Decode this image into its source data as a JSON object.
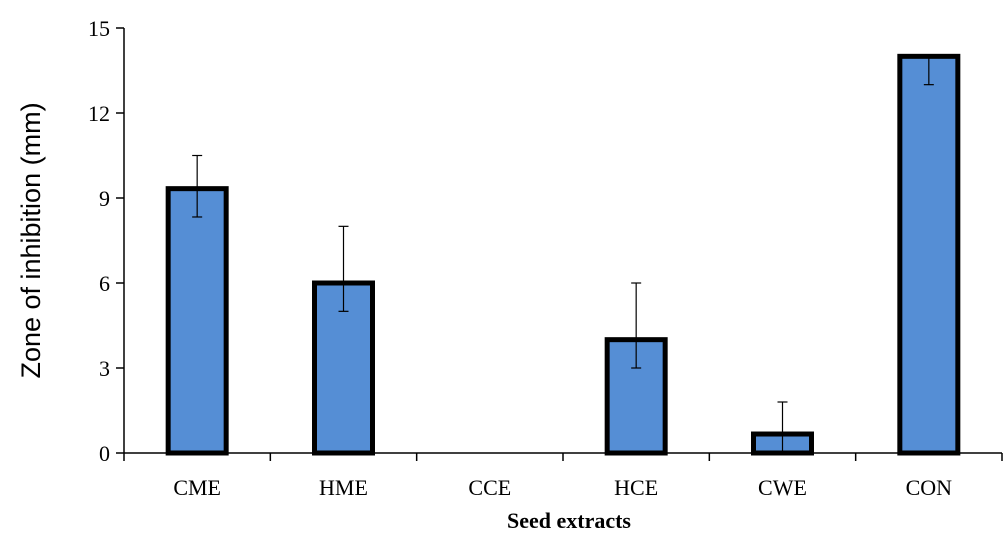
{
  "chart_data": {
    "type": "bar",
    "categories": [
      "CME",
      "HME",
      "CCE",
      "HCE",
      "CWE",
      "CON"
    ],
    "values": [
      9.33,
      6.0,
      0,
      4.0,
      0.67,
      14.0
    ],
    "error_bars": [
      {
        "low": 8.33,
        "high": 10.5
      },
      {
        "low": 5.0,
        "high": 8.0
      },
      null,
      {
        "low": 3.0,
        "high": 6.0
      },
      {
        "low": 0.0,
        "high": 1.8
      },
      {
        "low": 13.0,
        "high": 14.0
      }
    ],
    "xlabel": "Seed extracts",
    "ylabel": "Zone of inhibition (mm)",
    "ylim": [
      0,
      15
    ],
    "yticks": [
      0,
      3,
      6,
      9,
      12,
      15
    ],
    "grid": false,
    "colors": {
      "bar_fill": "#558ed5",
      "bar_stroke": "#000000",
      "axis": "#000000"
    }
  }
}
